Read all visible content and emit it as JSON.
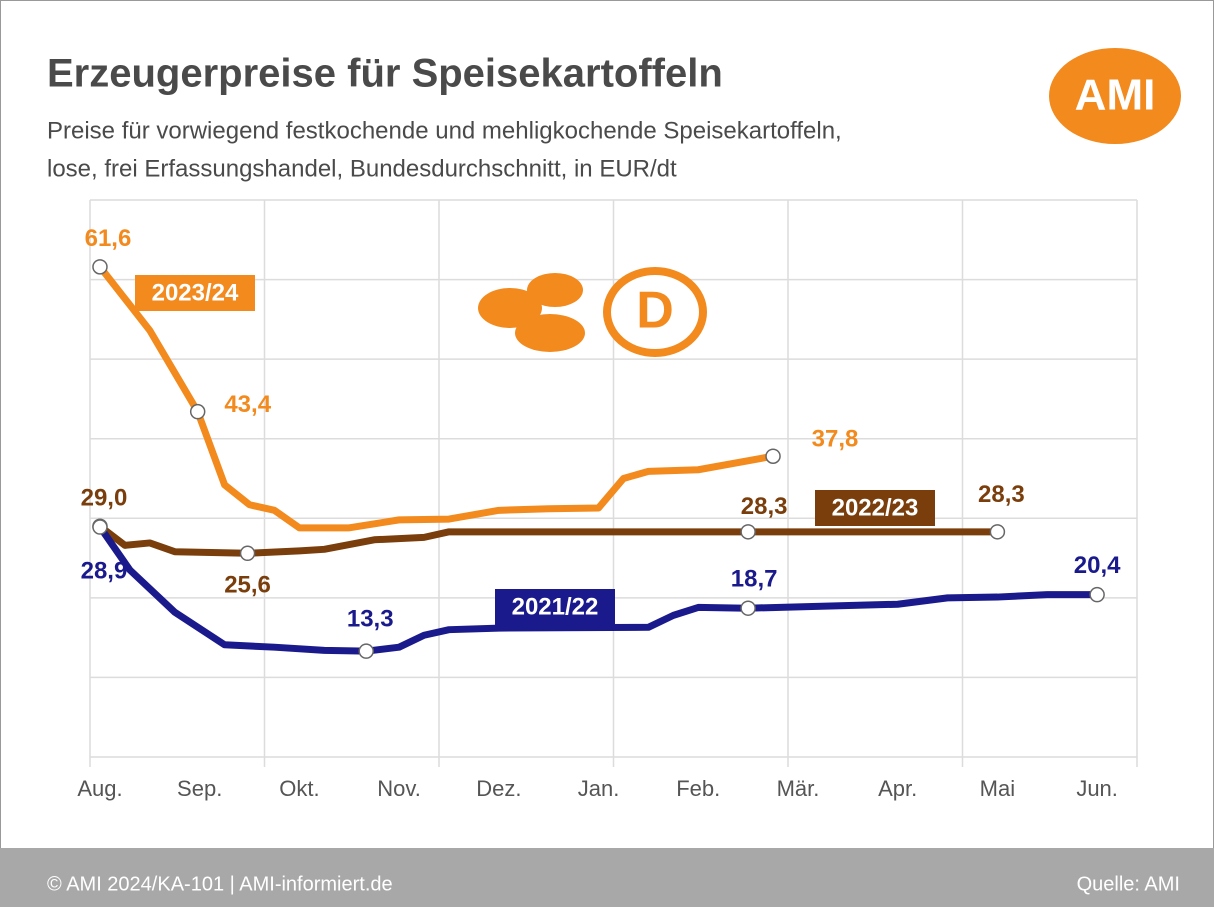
{
  "chart_data": {
    "type": "line",
    "title": "Erzeugerpreise für Speisekartoffeln",
    "subtitle": [
      "Preise für vorwiegend festkochende und mehligkochende Speisekartoffeln,",
      "lose, frei Erfassungshandel, Bundesdurchschnitt, in EUR/dt"
    ],
    "logo": "AMI",
    "icon_label": "D",
    "categories": [
      "Aug.",
      "Sep.",
      "Okt.",
      "Nov.",
      "Dez.",
      "Jan.",
      "Feb.",
      "Mär.",
      "Apr.",
      "Mai",
      "Jun."
    ],
    "xlim": [
      -0.1,
      10.4
    ],
    "ylim": [
      0,
      70
    ],
    "yticks": [
      0,
      10,
      20,
      30,
      40,
      50,
      60,
      70
    ],
    "grid": true,
    "series": [
      {
        "name": "2023/24",
        "color": "#f28a1e",
        "x": [
          0,
          0.5,
          0.98,
          1.25,
          1.5,
          1.75,
          2.0,
          2.5,
          3.0,
          3.5,
          4.0,
          4.5,
          5.0,
          5.25,
          5.5,
          6.0,
          6.75
        ],
        "values": [
          61.6,
          53.6,
          43.4,
          34.2,
          31.7,
          31.0,
          28.8,
          28.8,
          29.8,
          29.9,
          31.0,
          31.2,
          31.3,
          35.0,
          35.9,
          36.1,
          37.8
        ],
        "value_labels": [
          "61,6",
          null,
          "43,4",
          null,
          null,
          null,
          null,
          null,
          null,
          null,
          null,
          null,
          null,
          null,
          null,
          null,
          "37,8"
        ]
      },
      {
        "name": "2022/23",
        "color": "#7a3e0c",
        "x": [
          0,
          0.25,
          0.5,
          0.75,
          1.48,
          2.0,
          2.25,
          2.75,
          3.25,
          3.5,
          6.5,
          9.0
        ],
        "values": [
          29.0,
          26.6,
          26.9,
          25.8,
          25.6,
          25.9,
          26.1,
          27.3,
          27.6,
          28.3,
          28.3,
          28.3
        ],
        "value_labels": [
          "29,0",
          null,
          null,
          null,
          "25,6",
          null,
          null,
          null,
          null,
          null,
          "28,3",
          "28,3"
        ]
      },
      {
        "name": "2021/22",
        "color": "#1a1a8c",
        "x": [
          0,
          0.3,
          0.75,
          1.25,
          1.75,
          2.25,
          2.67,
          3.0,
          3.25,
          3.5,
          4.0,
          5.5,
          5.75,
          6.0,
          6.5,
          8.0,
          8.5,
          9.0,
          9.5,
          10.0
        ],
        "values": [
          28.9,
          23.5,
          18.2,
          14.1,
          13.8,
          13.4,
          13.3,
          13.8,
          15.3,
          16.0,
          16.2,
          16.3,
          17.8,
          18.8,
          18.7,
          19.2,
          20.0,
          20.1,
          20.4,
          20.4
        ],
        "value_labels": [
          "28,9",
          null,
          null,
          null,
          null,
          null,
          "13,3",
          null,
          null,
          null,
          null,
          null,
          null,
          null,
          "18,7",
          null,
          null,
          null,
          null,
          "20,4"
        ]
      }
    ],
    "footer_left": "© AMI 2024/KA-101 | AMI-informiert.de",
    "footer_right": "Quelle: AMI"
  }
}
